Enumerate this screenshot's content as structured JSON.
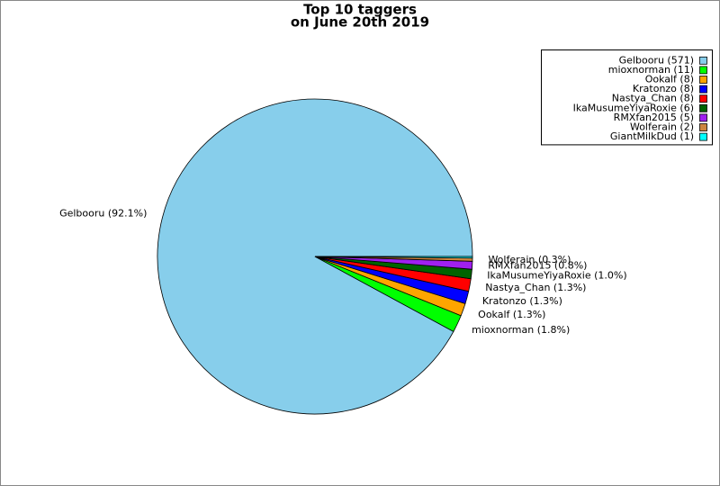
{
  "chart_data": {
    "type": "pie",
    "title": "Top 10 taggers",
    "subtitle": "on June 20th 2019",
    "categories": [
      "Gelbooru (571)",
      "mioxnorman (11)",
      "Ookalf (8)",
      "Kratonzo (8)",
      "Nastya_Chan (8)",
      "IkaMusumeYiyaRoxie (6)",
      "RMXfan2015 (5)",
      "Wolferain (2)",
      "GiantMilkDud (1)"
    ],
    "values": [
      571,
      11,
      8,
      8,
      8,
      6,
      5,
      2,
      1
    ],
    "value_labels": [
      "Gelbooru (92.1%)",
      "mioxnorman (1.8%)",
      "Ookalf (1.3%)",
      "Kratonzo (1.3%)",
      "Nastya_Chan (1.3%)",
      "IkaMusumeYiyaRoxie (1.0%)",
      "RMXfan2015 (0.8%)",
      "Wolferain (0.3%)",
      null
    ],
    "colors": [
      "#87ceeb",
      "#00ff00",
      "#ffa500",
      "#0000ff",
      "#ff0000",
      "#006400",
      "#a020f0",
      "#cd853f",
      "#00ffff"
    ],
    "legend_position": "upper right"
  }
}
